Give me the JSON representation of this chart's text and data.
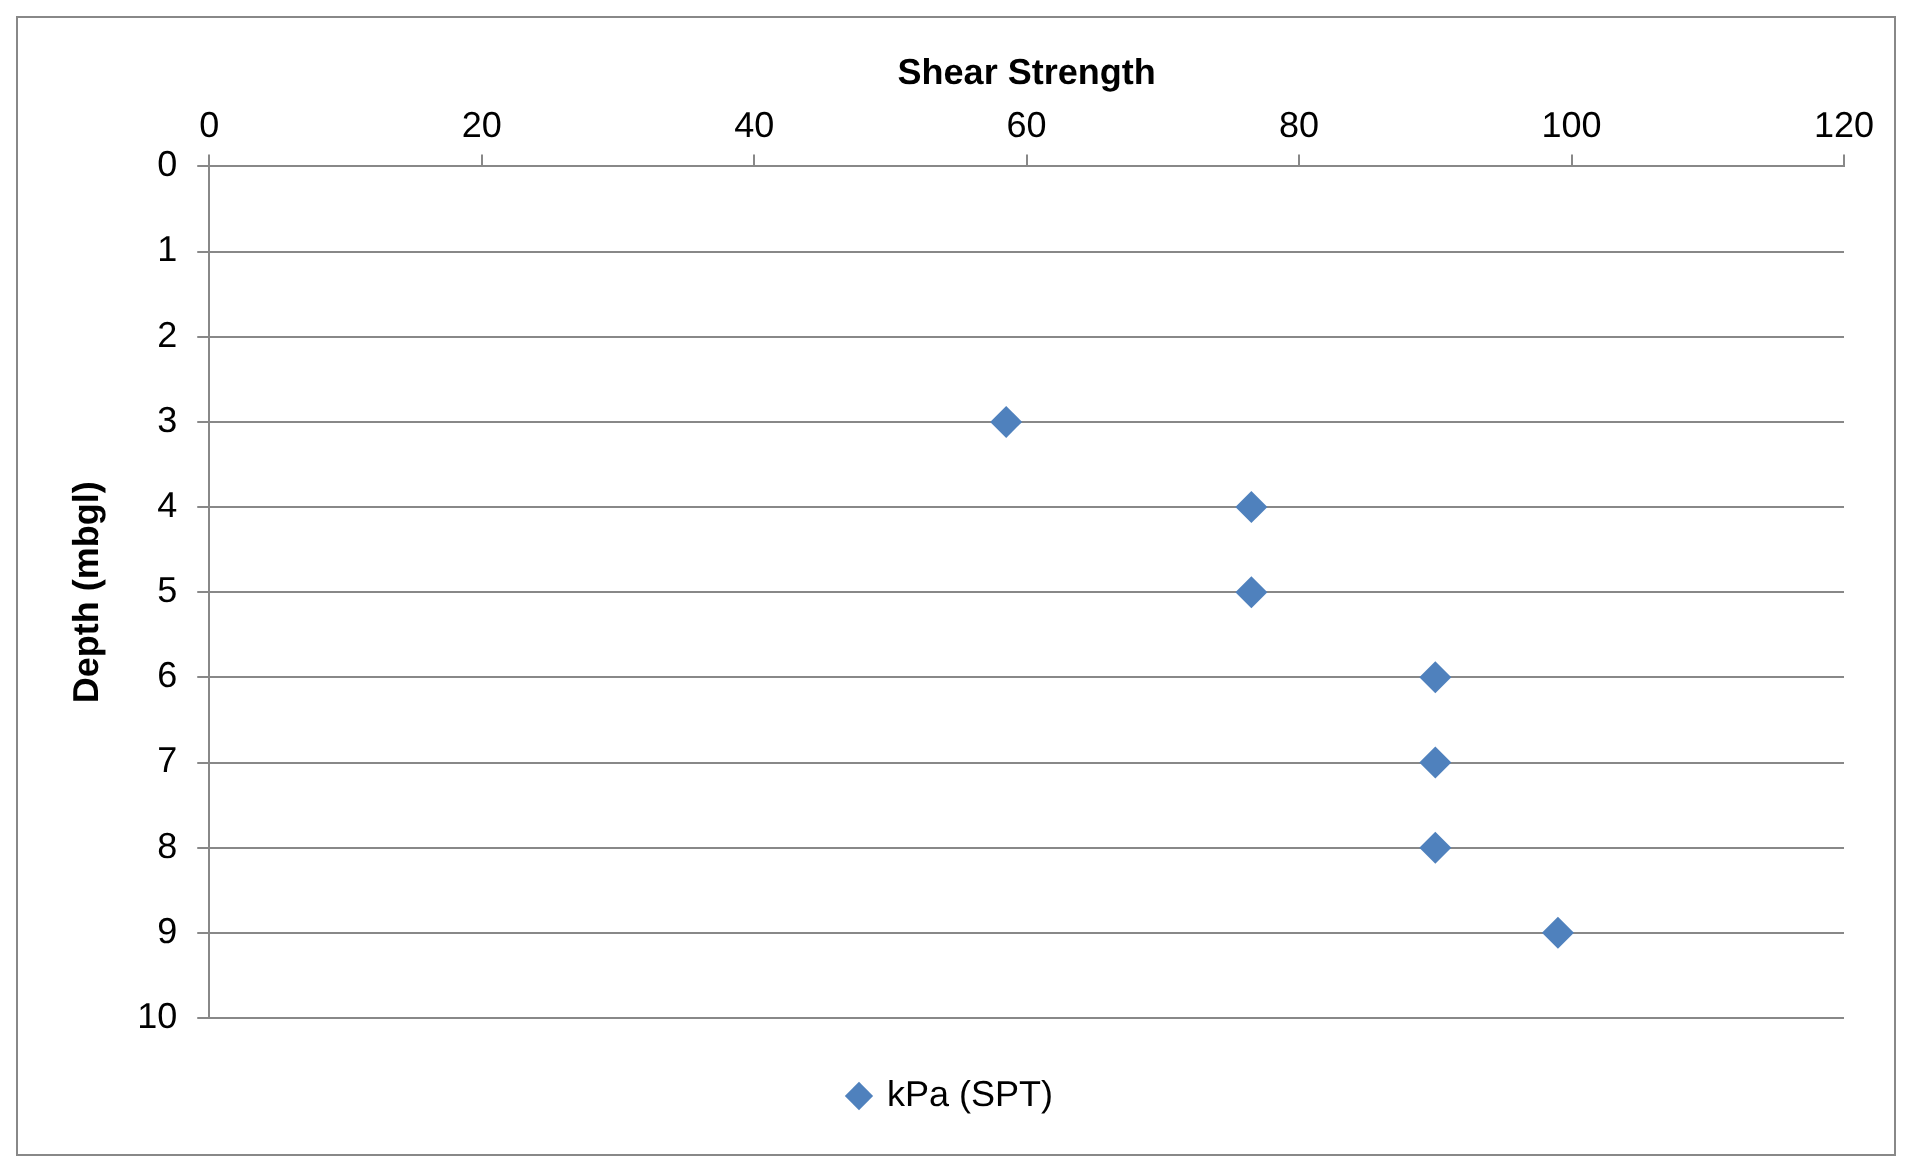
{
  "chart_data": {
    "type": "scatter",
    "xlabel": "Shear Strength",
    "ylabel": "Depth (mbgl)",
    "xlim": [
      0,
      120
    ],
    "xticks": [
      0,
      20,
      40,
      60,
      80,
      100,
      120
    ],
    "ylim": [
      10,
      0
    ],
    "yticks": [
      0,
      1,
      2,
      3,
      4,
      5,
      6,
      7,
      8,
      9,
      10
    ],
    "grid": "y",
    "legend": "bottom",
    "marker": "diamond",
    "series": [
      {
        "name": "kPa (SPT)",
        "color": "#4f81bd",
        "x": [
          58.5,
          76.5,
          76.5,
          90,
          90,
          90,
          99
        ],
        "values": [
          3,
          4,
          5,
          6,
          7,
          8,
          9
        ]
      }
    ]
  }
}
